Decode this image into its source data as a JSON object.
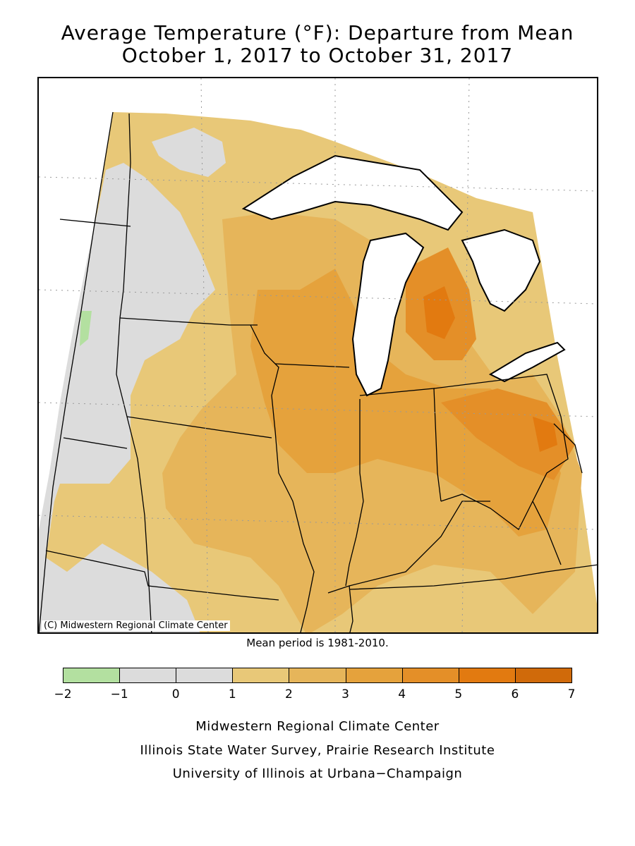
{
  "title": {
    "line1": "Average Temperature (°F): Departure from Mean",
    "line2": "October 1, 2017 to October 31, 2017"
  },
  "map": {
    "copyright": "(C) Midwestern Regional Climate Center",
    "mean_period": "Mean period is 1981-2010."
  },
  "legend": {
    "bins": [
      {
        "from": -2,
        "to": -1,
        "color": "#b3e0a0"
      },
      {
        "from": -1,
        "to": 0,
        "color": "#dcdcdc"
      },
      {
        "from": 0,
        "to": 1,
        "color": "#dcdcdc"
      },
      {
        "from": 1,
        "to": 2,
        "color": "#e8c878"
      },
      {
        "from": 2,
        "to": 3,
        "color": "#e6b55a"
      },
      {
        "from": 3,
        "to": 4,
        "color": "#e5a23c"
      },
      {
        "from": 4,
        "to": 5,
        "color": "#e48f28"
      },
      {
        "from": 5,
        "to": 6,
        "color": "#e27a10"
      },
      {
        "from": 6,
        "to": 7,
        "color": "#d06a0a"
      }
    ],
    "ticks": [
      "−2",
      "−1",
      "0",
      "1",
      "2",
      "3",
      "4",
      "5",
      "6",
      "7"
    ]
  },
  "credits": {
    "line1": "Midwestern Regional Climate Center",
    "line2": "Illinois State Water Survey, Prairie Research Institute",
    "line3": "University of Illinois at Urbana−Champaign"
  }
}
